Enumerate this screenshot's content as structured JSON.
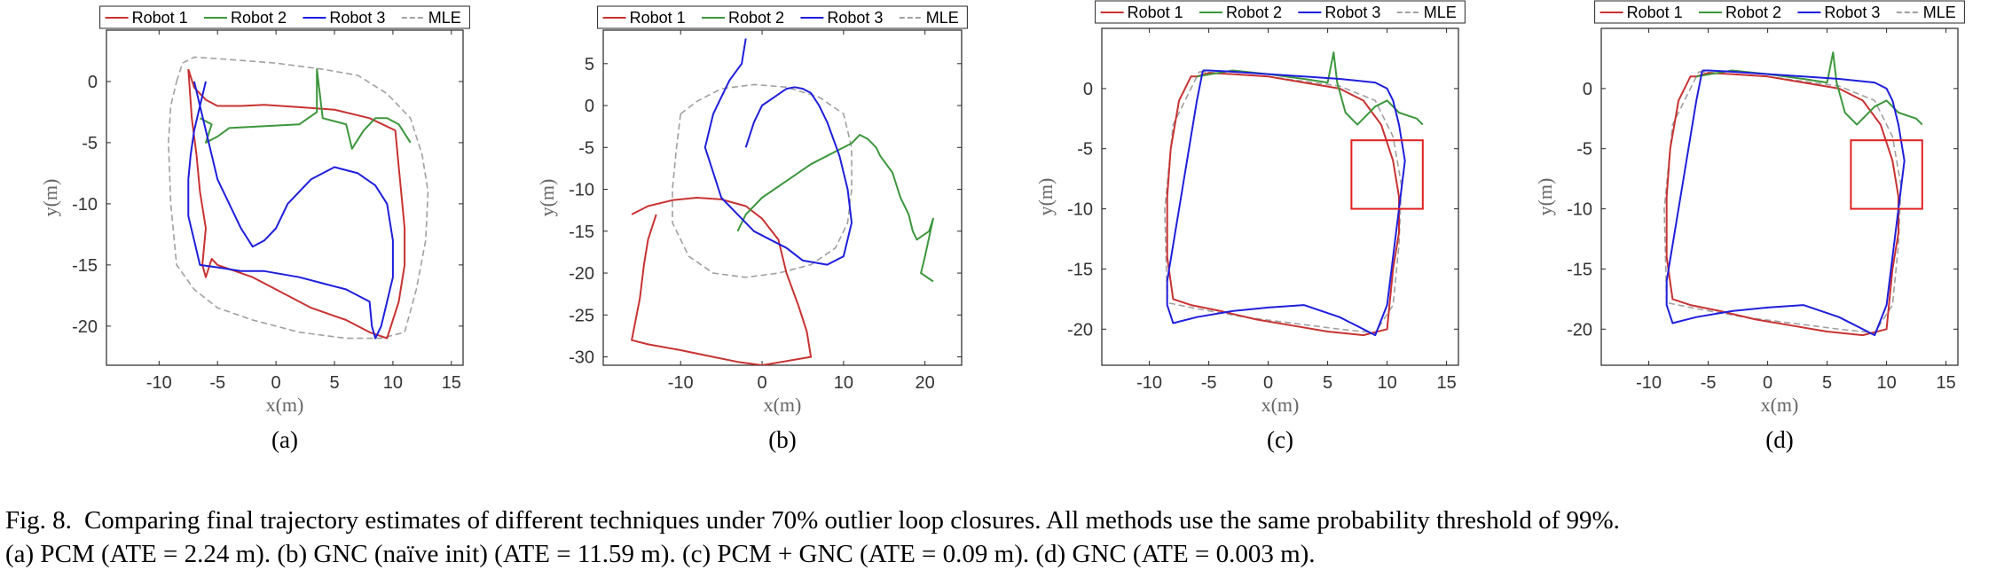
{
  "figure": {
    "legend": [
      "Robot 1",
      "Robot 2",
      "Robot 3",
      "MLE"
    ],
    "colors": {
      "Robot 1": "#c83232",
      "Robot 2": "#3c963c",
      "Robot 3": "#1e1edc",
      "MLE": "#a0a0a0"
    }
  },
  "chart_data": [
    {
      "type": "line",
      "panel_label": "(a)",
      "xlabel": "x(m)",
      "ylabel": "y(m)",
      "xlim": [
        -14.5,
        16
      ],
      "ylim": [
        -23.2,
        4.2
      ],
      "xticks": [
        -10,
        -5,
        0,
        5,
        10,
        15
      ],
      "yticks": [
        0,
        -5,
        -10,
        -15,
        -20
      ],
      "legend_position": "top",
      "series": [
        {
          "name": "Robot 1",
          "x": [
            -7.5,
            -7.2,
            -6.8,
            -6.5,
            -6,
            -6.3,
            -6,
            -5.5,
            -5,
            -2,
            0,
            3,
            6,
            8,
            9.5,
            10.5,
            11,
            11,
            10.8,
            10.5,
            10.2,
            8,
            5,
            2,
            -1,
            -3,
            -5,
            -6,
            -7,
            -7.5
          ],
          "y": [
            1,
            -3,
            -6,
            -9,
            -12,
            -15,
            -16,
            -14.5,
            -15,
            -16,
            -17,
            -18.5,
            -19.5,
            -20.5,
            -21,
            -18,
            -15,
            -12,
            -10,
            -7,
            -4,
            -3,
            -2.3,
            -2.1,
            -1.9,
            -2,
            -2,
            -1.5,
            -0.5,
            1
          ]
        },
        {
          "name": "Robot 2",
          "x": [
            -6.5,
            -5.5,
            -6,
            -5,
            -4,
            2,
            3.5,
            3.5,
            4,
            6,
            6.5,
            7.5,
            8.5,
            9.5,
            10.5,
            11.5
          ],
          "y": [
            -3,
            -3.5,
            -5,
            -4.5,
            -3.8,
            -3.5,
            -2.5,
            1,
            -3,
            -3.5,
            -5.5,
            -4,
            -3,
            -3,
            -3.5,
            -5
          ]
        },
        {
          "name": "Robot 3",
          "x": [
            -7,
            -6.5,
            -6,
            -5.5,
            -5,
            -4,
            -3,
            -2,
            -1,
            0,
            1,
            2,
            3,
            5,
            7,
            8.5,
            9.5,
            10,
            10,
            9.5,
            9,
            8.5,
            8.2,
            8,
            6,
            4,
            2,
            -1,
            -3,
            -5,
            -6.5,
            -7,
            -7.5,
            -7.5,
            -7.3,
            -7,
            -6.5,
            -6
          ],
          "y": [
            0,
            -2,
            -4,
            -6,
            -8,
            -10,
            -12,
            -13.5,
            -13,
            -12,
            -10,
            -9,
            -8,
            -7,
            -7.5,
            -8.5,
            -10,
            -13,
            -16,
            -18,
            -20,
            -21,
            -20,
            -18,
            -17,
            -16.5,
            -16,
            -15.5,
            -15.5,
            -15.2,
            -15,
            -13,
            -11,
            -8,
            -6,
            -4,
            -2,
            0
          ]
        },
        {
          "name": "MLE",
          "x": [
            -8.5,
            -8,
            -7,
            -4,
            0,
            4,
            7,
            9.5,
            11.5,
            12.5,
            13,
            12.8,
            12,
            11,
            9,
            6,
            2,
            -2,
            -5,
            -7,
            -8.5,
            -9,
            -9.2,
            -9,
            -8.5
          ],
          "y": [
            0,
            1.5,
            2,
            1.8,
            1.5,
            1,
            0.5,
            -1,
            -3,
            -6,
            -9,
            -13,
            -17,
            -20.5,
            -21,
            -21,
            -20.5,
            -19.5,
            -18.5,
            -17,
            -15,
            -10,
            -5,
            -2,
            0
          ]
        }
      ]
    },
    {
      "type": "line",
      "panel_label": "(b)",
      "xlabel": "x(m)",
      "ylabel": "y(m)",
      "xlim": [
        -19.5,
        24.5
      ],
      "ylim": [
        -31,
        9
      ],
      "xticks": [
        -10,
        0,
        10,
        20
      ],
      "yticks": [
        5,
        0,
        -5,
        -10,
        -15,
        -20,
        -25,
        -30
      ],
      "legend_position": "top",
      "series": [
        {
          "name": "Robot 1",
          "x": [
            -13,
            -14,
            -14.5,
            -15,
            -16,
            -14,
            -10,
            -6,
            -3,
            0,
            3,
            6,
            5.5,
            4.5,
            3,
            2,
            0,
            -2,
            -5,
            -8,
            -11,
            -14,
            -16
          ],
          "y": [
            -13,
            -16,
            -19,
            -23,
            -28,
            -28.5,
            -29.2,
            -30,
            -30.6,
            -31,
            -30.5,
            -30,
            -27,
            -24,
            -20,
            -16,
            -13.5,
            -12,
            -11.2,
            -11,
            -11.3,
            -12,
            -13
          ]
        },
        {
          "name": "Robot 2",
          "x": [
            -3,
            -2,
            0,
            3,
            6,
            9,
            11,
            12,
            13,
            14,
            14.5,
            16,
            17,
            18,
            18.5,
            19,
            20.5,
            21,
            20,
            19.5,
            21
          ],
          "y": [
            -15,
            -13,
            -11,
            -9,
            -7,
            -5.5,
            -4.5,
            -3.5,
            -4,
            -5,
            -6,
            -8,
            -11,
            -13,
            -15,
            -16,
            -15,
            -13.5,
            -18,
            -20,
            -21
          ]
        },
        {
          "name": "Robot 3",
          "x": [
            -2,
            -2.5,
            -4,
            -5,
            -6,
            -7,
            -6,
            -5,
            -3,
            -1,
            1,
            3,
            5,
            8,
            10,
            11,
            10.5,
            9.5,
            8,
            7,
            6,
            5,
            4,
            3,
            1.5,
            0,
            -1,
            -2
          ],
          "y": [
            8,
            5,
            3,
            1,
            -1,
            -5,
            -8,
            -11,
            -13,
            -15,
            -16,
            -17,
            -18.5,
            -19,
            -18,
            -14,
            -10,
            -6,
            -2,
            0,
            1.5,
            2,
            2.2,
            2,
            1,
            0,
            -2,
            -5
          ]
        },
        {
          "name": "MLE",
          "x": [
            -10,
            -8,
            -5,
            -1,
            3,
            7,
            10,
            11,
            11,
            10.5,
            9,
            6,
            2,
            -2,
            -6,
            -9,
            -11,
            -11,
            -10.5,
            -10
          ],
          "y": [
            -1,
            0.5,
            2,
            2.5,
            2.2,
            1,
            -1,
            -5,
            -10,
            -14,
            -17,
            -19,
            -20,
            -20.5,
            -20,
            -18,
            -14,
            -10,
            -5,
            -1
          ]
        }
      ]
    },
    {
      "type": "line",
      "panel_label": "(c)",
      "xlabel": "x(m)",
      "ylabel": "y(m)",
      "xlim": [
        -14,
        16
      ],
      "ylim": [
        -23,
        5
      ],
      "xticks": [
        -10,
        -5,
        0,
        5,
        10,
        15
      ],
      "yticks": [
        0,
        -5,
        -10,
        -15,
        -20
      ],
      "legend_position": "top",
      "series": [
        {
          "name": "Robot 1",
          "x": [
            -6,
            -5,
            -3,
            0,
            3,
            6,
            8,
            9.5,
            10.5,
            11,
            11,
            10.5,
            10,
            8,
            5,
            2,
            -1,
            -4,
            -6.5,
            -8,
            -8.5,
            -8.5,
            -8.2,
            -7.5,
            -6.5,
            -6
          ],
          "y": [
            1,
            1.3,
            1.2,
            1,
            0.5,
            0,
            -1,
            -3,
            -6,
            -9,
            -12,
            -15,
            -20,
            -20.5,
            -20.2,
            -19.7,
            -19.2,
            -18.5,
            -18,
            -17.5,
            -14,
            -9,
            -5,
            -1,
            1,
            1
          ]
        },
        {
          "name": "Robot 2",
          "x": [
            -6,
            -3,
            0,
            3,
            5,
            5.5,
            5.8,
            6.5,
            7.5,
            9,
            10,
            11,
            12.5,
            13
          ],
          "y": [
            1,
            1.5,
            1.2,
            0.8,
            0.5,
            3,
            0.5,
            -2,
            -3,
            -1.5,
            -1,
            -2,
            -2.5,
            -3
          ]
        },
        {
          "name": "Robot 3",
          "x": [
            -5.5,
            -6,
            -6.5,
            -7,
            -7.5,
            -8,
            -8.5,
            -8.5,
            -8,
            -6,
            -3,
            0,
            3,
            6,
            9,
            10,
            10.5,
            11,
            11.5,
            11,
            10.5,
            10,
            9,
            6,
            3,
            0,
            -3,
            -5,
            -5.5
          ],
          "y": [
            1.5,
            -1,
            -4,
            -7,
            -10,
            -13,
            -16,
            -18,
            -19.5,
            -19,
            -18.5,
            -18.2,
            -18,
            -19,
            -20.5,
            -18,
            -14,
            -10,
            -6,
            -3,
            -1,
            0,
            0.5,
            0.8,
            1,
            1.2,
            1.4,
            1.5,
            1.5
          ]
        },
        {
          "name": "MLE",
          "x": [
            -5.8,
            -3,
            0,
            3,
            6,
            9,
            10.5,
            11.2,
            11,
            10.5,
            9,
            6,
            2,
            -2,
            -6,
            -8.5,
            -8.7,
            -8,
            -5.8
          ],
          "y": [
            1.4,
            1.2,
            1,
            0.6,
            0.2,
            -1,
            -4,
            -8,
            -13,
            -18,
            -20.3,
            -20,
            -19.5,
            -19,
            -18.3,
            -17.8,
            -10,
            -3,
            1.4
          ]
        }
      ],
      "highlight_box": {
        "x": [
          7,
          13
        ],
        "y": [
          -10,
          -4.3
        ]
      }
    },
    {
      "type": "line",
      "panel_label": "(d)",
      "xlabel": "x(m)",
      "ylabel": "y(m)",
      "xlim": [
        -14,
        16
      ],
      "ylim": [
        -23,
        5
      ],
      "xticks": [
        -10,
        -5,
        0,
        5,
        10,
        15
      ],
      "yticks": [
        0,
        -5,
        -10,
        -15,
        -20
      ],
      "legend_position": "top",
      "series": [
        {
          "name": "Robot 1",
          "x": [
            -6,
            -5,
            -3,
            0,
            3,
            6,
            8,
            9.5,
            10.5,
            11,
            11,
            10.5,
            10,
            8,
            5,
            2,
            -1,
            -4,
            -6.5,
            -8,
            -8.5,
            -8.5,
            -8.2,
            -7.5,
            -6.5,
            -6
          ],
          "y": [
            1,
            1.3,
            1.2,
            1,
            0.5,
            0,
            -1,
            -3,
            -6,
            -9,
            -12,
            -15,
            -20,
            -20.5,
            -20.2,
            -19.7,
            -19.2,
            -18.5,
            -18,
            -17.5,
            -14,
            -9,
            -5,
            -1,
            1,
            1
          ]
        },
        {
          "name": "Robot 2",
          "x": [
            -6,
            -3,
            0,
            3,
            5,
            5.5,
            5.8,
            6.5,
            7.5,
            9,
            10,
            11,
            12.5,
            13
          ],
          "y": [
            1,
            1.5,
            1.2,
            0.8,
            0.5,
            3,
            0.5,
            -2,
            -3,
            -1.5,
            -1,
            -2,
            -2.5,
            -3
          ]
        },
        {
          "name": "Robot 3",
          "x": [
            -5.5,
            -6,
            -6.5,
            -7,
            -7.5,
            -8,
            -8.5,
            -8.5,
            -8,
            -6,
            -3,
            0,
            3,
            6,
            9,
            10,
            10.5,
            11,
            11.5,
            11,
            10.5,
            10,
            9,
            6,
            3,
            0,
            -3,
            -5,
            -5.5
          ],
          "y": [
            1.5,
            -1,
            -4,
            -7,
            -10,
            -13,
            -16,
            -18,
            -19.5,
            -19,
            -18.5,
            -18.2,
            -18,
            -19,
            -20.5,
            -18,
            -14,
            -10,
            -6,
            -3,
            -1,
            0,
            0.5,
            0.8,
            1,
            1.2,
            1.4,
            1.5,
            1.5
          ]
        },
        {
          "name": "MLE",
          "x": [
            -5.8,
            -3,
            0,
            3,
            6,
            9,
            10.5,
            11.2,
            11,
            10.5,
            9,
            6,
            2,
            -2,
            -6,
            -8.5,
            -8.7,
            -8,
            -5.8
          ],
          "y": [
            1.4,
            1.2,
            1,
            0.6,
            0.2,
            -1,
            -4,
            -8,
            -13,
            -18,
            -20.3,
            -20,
            -19.5,
            -19,
            -18.3,
            -17.8,
            -10,
            -3,
            1.4
          ]
        }
      ],
      "highlight_box": {
        "x": [
          7,
          13
        ],
        "y": [
          -10,
          -4.3
        ]
      }
    }
  ],
  "caption": {
    "label": "Fig. 8.",
    "line1": "Comparing final trajectory estimates of different techniques under 70% outlier loop closures. All methods use the same probability threshold of 99%.",
    "line2": "(a) PCM (ATE = 2.24 m). (b) GNC (naïve init) (ATE = 11.59 m). (c) PCM + GNC (ATE = 0.09 m). (d) GNC (ATE = 0.003 m)."
  }
}
